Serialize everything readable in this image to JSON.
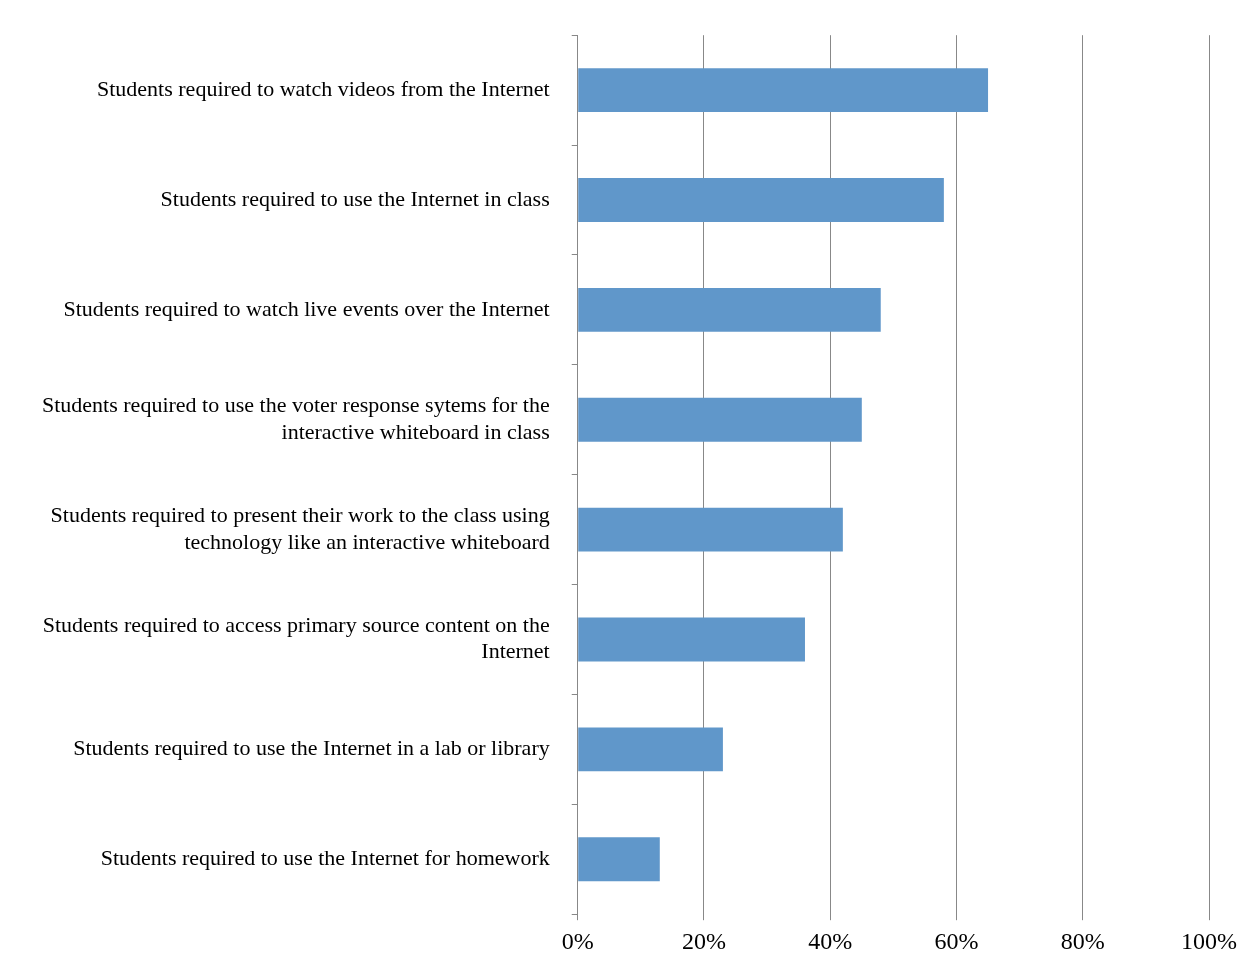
{
  "chart_data": {
    "type": "bar",
    "orientation": "horizontal",
    "categories": [
      "Students required to watch videos from the Internet",
      "Students required to use the Internet in class",
      "Students required to watch live events over the Internet",
      "Students required to use the voter response sytems for the interactive whiteboard in class",
      "Students required to present their work to the class using technology like an interactive whiteboard",
      "Students required to access primary source content on the Internet",
      "Students required to use the Internet in a lab or library",
      "Students required to use the Internet for homework"
    ],
    "values": [
      65,
      58,
      48,
      45,
      42,
      36,
      23,
      13
    ],
    "color": "#6097ca",
    "xlim": [
      0,
      100
    ],
    "xticks": [
      {
        "value": 0,
        "label": "0%"
      },
      {
        "value": 20,
        "label": "20%"
      },
      {
        "value": 40,
        "label": "40%"
      },
      {
        "value": 60,
        "label": "60%"
      },
      {
        "value": 80,
        "label": "80%"
      },
      {
        "value": 100,
        "label": "100%"
      }
    ],
    "grid": "x",
    "legend": false
  }
}
